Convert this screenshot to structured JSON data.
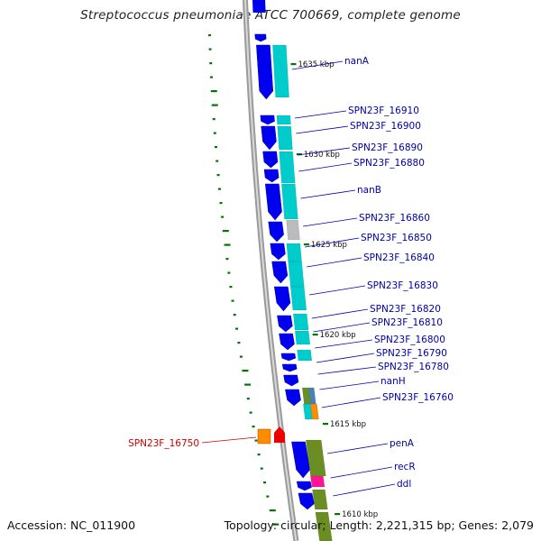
{
  "title": "Streptococcus pneumoniae ATCC 700669, complete genome",
  "footer": {
    "accession": "Accession: NC_011900",
    "summary": "Topology: circular; Length: 2,221,315 bp; Genes: 2,079"
  },
  "colors": {
    "gene_label": "#0000aa",
    "highlight_label": "#cc0000",
    "forward_cds": "#0000ee",
    "feature_cyan": "#00cccc",
    "feature_grey": "#bbbbbb",
    "feature_olive": "#6b8e23",
    "feature_orange": "#ff8c00",
    "feature_red": "#ee0000",
    "feature_pink": "#ff1493",
    "feature_steel": "#4682b4",
    "gc_tick": "#007700",
    "backbone": "#888888"
  },
  "ticks": [
    "1635 kbp",
    "1630 kbp",
    "1625 kbp",
    "1620 kbp",
    "1615 kbp",
    "1610 kbp"
  ],
  "genes": [
    "nanA",
    "SPN23F_16910",
    "SPN23F_16900",
    "SPN23F_16890",
    "SPN23F_16880",
    "nanB",
    "SPN23F_16860",
    "SPN23F_16850",
    "SPN23F_16840",
    "SPN23F_16830",
    "SPN23F_16820",
    "SPN23F_16810",
    "SPN23F_16800",
    "SPN23F_16790",
    "SPN23F_16780",
    "nanH",
    "SPN23F_16760",
    "penA",
    "recR",
    "ddl"
  ],
  "highlight_gene": "SPN23F_16750"
}
